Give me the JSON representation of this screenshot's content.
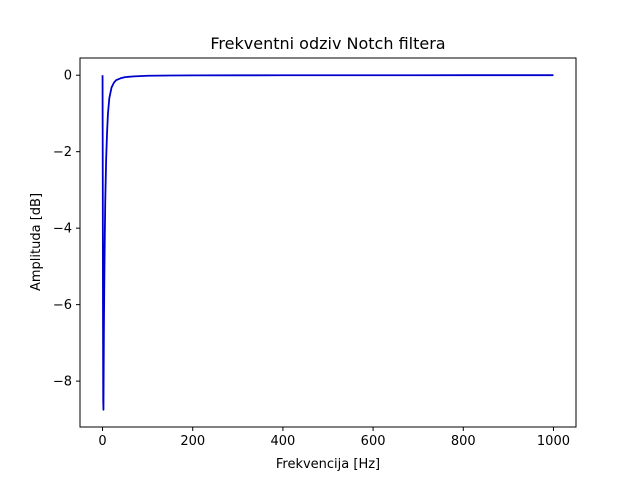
{
  "chart_data": {
    "type": "line",
    "title": "Frekventni odziv Notch filtera",
    "xlabel": "Frekvencija [Hz]",
    "ylabel": "Amplituda [dB]",
    "xlim": [
      -50,
      1050
    ],
    "ylim": [
      -9.2,
      0.45
    ],
    "xticks": [
      0,
      200,
      400,
      600,
      800,
      1000
    ],
    "yticks": [
      0,
      -2,
      -4,
      -6,
      -8
    ],
    "xtick_labels": [
      "0",
      "200",
      "400",
      "600",
      "800",
      "1000"
    ],
    "ytick_labels": [
      "0",
      "−2",
      "−4",
      "−6",
      "−8"
    ],
    "grid": false,
    "series": [
      {
        "color": "#0000cc",
        "x": [
          0,
          0.5,
          1,
          1.5,
          2,
          3,
          4,
          5,
          6,
          8,
          10,
          12,
          15,
          20,
          25,
          30,
          40,
          50,
          70,
          100,
          150,
          200,
          300,
          400,
          500,
          600,
          700,
          800,
          900,
          1000
        ],
        "y": [
          0,
          -2.7,
          -6.2,
          -8.5,
          -8.75,
          -6.6,
          -5.3,
          -4.2,
          -3.3,
          -2.2,
          -1.5,
          -1.0,
          -0.6,
          -0.32,
          -0.2,
          -0.13,
          -0.08,
          -0.05,
          -0.03,
          -0.015,
          -0.008,
          -0.005,
          -0.003,
          -0.002,
          -0.001,
          -0.001,
          -0.001,
          0,
          0,
          0
        ]
      }
    ],
    "ylabel_color": "#0000ff"
  }
}
